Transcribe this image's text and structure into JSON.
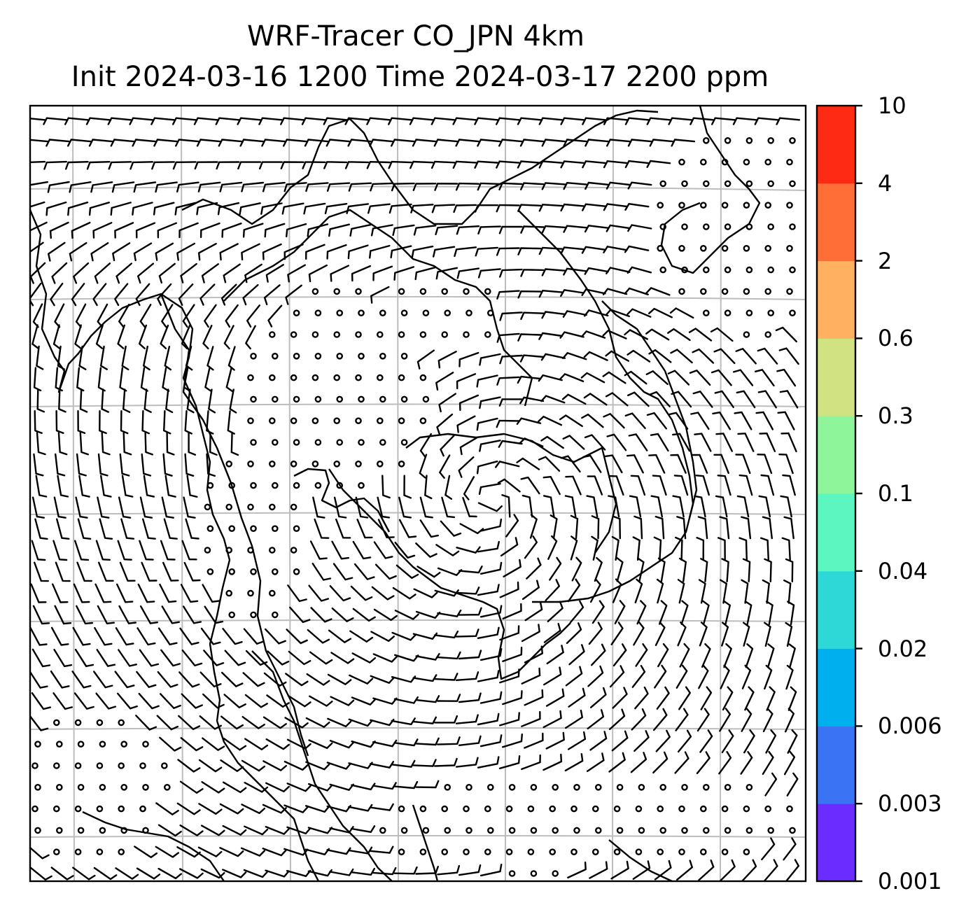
{
  "figure": {
    "title_line1": "WRF-Tracer CO_JPN 4km",
    "title_line2": "Init 2024-03-16 1200 Time 2024-03-17 2200 ppm"
  },
  "colorbar": {
    "levels": [
      "0.001",
      "0.003",
      "0.006",
      "0.02",
      "0.04",
      "0.1",
      "0.3",
      "0.6",
      "2",
      "4",
      "10"
    ],
    "colors": [
      "#6a2cff",
      "#3a74f4",
      "#00b0ee",
      "#2dd8d6",
      "#5cf7c0",
      "#8ef59a",
      "#d1e282",
      "#ffb061",
      "#ff6e36",
      "#ff2a13"
    ]
  },
  "map": {
    "field": "wind barbs over coastlines; CO tracer below lowest contour (white)",
    "calm_marker": "circle",
    "line_color": "#000000",
    "grid_color": "#bdbdbd"
  }
}
